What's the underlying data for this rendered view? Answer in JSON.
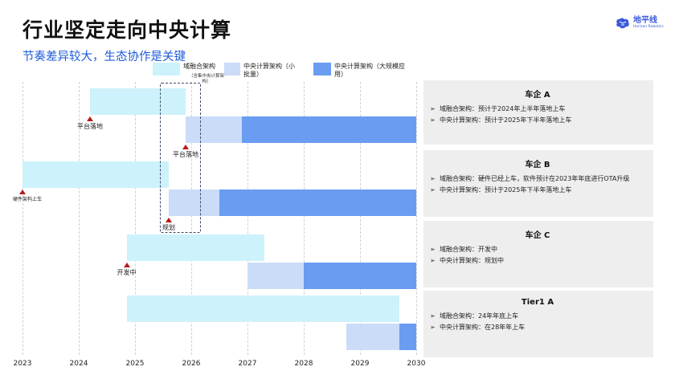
{
  "header": {
    "title": "行业坚定走向中央计算",
    "subtitle": "节奏差异较大，生态协作是关键",
    "logo_name": "地平线",
    "logo_sub": "Horizon Robotics"
  },
  "legend": {
    "domain": "域融合架构",
    "domain_note": "（含集中央计算架构）",
    "central_small": "中央计算架构（小批量）",
    "central_large": "中央计算架构（大规模应用）"
  },
  "colors": {
    "domain": "#cdf2fb",
    "central_small": "#cadcf8",
    "central_large": "#6a9cf2",
    "marker": "#b81a1a",
    "accent": "#1e5bd8"
  },
  "chart_data": {
    "type": "gantt",
    "x_axis": {
      "ticks": [
        "2023",
        "2024",
        "2025",
        "2026",
        "2027",
        "2028",
        "2029",
        "2030"
      ],
      "range": [
        2023,
        2030
      ]
    },
    "bars": [
      {
        "row": 0,
        "type": "domain",
        "start": 2024.2,
        "end": 2025.9
      },
      {
        "row": 1,
        "type": "central_small",
        "start": 2025.9,
        "end": 2026.9
      },
      {
        "row": 1,
        "type": "central_large",
        "start": 2026.9,
        "end": 2030.0
      },
      {
        "row": 2,
        "type": "domain",
        "start": 2023.0,
        "end": 2025.6
      },
      {
        "row": 3,
        "type": "central_small",
        "start": 2025.6,
        "end": 2026.5
      },
      {
        "row": 3,
        "type": "central_large",
        "start": 2026.5,
        "end": 2030.0
      },
      {
        "row": 4,
        "type": "domain",
        "start": 2024.85,
        "end": 2027.3
      },
      {
        "row": 5,
        "type": "central_small",
        "start": 2027.0,
        "end": 2028.0
      },
      {
        "row": 5,
        "type": "central_large",
        "start": 2028.0,
        "end": 2030.0
      },
      {
        "row": 6,
        "type": "domain",
        "start": 2024.85,
        "end": 2029.7
      },
      {
        "row": 7,
        "type": "central_small",
        "start": 2028.75,
        "end": 2029.7
      },
      {
        "row": 7,
        "type": "central_large",
        "start": 2029.7,
        "end": 2030.0
      }
    ],
    "markers": [
      {
        "x": 2024.2,
        "row": 0,
        "label": "平台落地"
      },
      {
        "x": 2025.9,
        "row": 1,
        "label": "平台落地"
      },
      {
        "x": 2023.0,
        "row": 2,
        "label": "硬件架构上车",
        "small": true
      },
      {
        "x": 2025.6,
        "row": 3,
        "label": "规划"
      },
      {
        "x": 2024.85,
        "row": 4,
        "label": "开发中"
      }
    ]
  },
  "panels": [
    {
      "title": "车企 A",
      "items": [
        "域融合架构：预计于2024年上半年落地上车",
        "中央计算架构：预计于2025年下半年落地上车"
      ]
    },
    {
      "title": "车企 B",
      "items": [
        "域融合架构：硬件已经上车，软件预计在2023年年底进行OTA升级",
        "中央计算架构：预计于2025年下半年落地上车"
      ]
    },
    {
      "title": "车企 C",
      "items": [
        "域融合架构：开发中",
        "中央计算架构：规划中"
      ]
    },
    {
      "title": "Tier1 A",
      "items": [
        "域融合架构：24年年底上车",
        "中央计算架构：在28年年上车"
      ]
    }
  ]
}
